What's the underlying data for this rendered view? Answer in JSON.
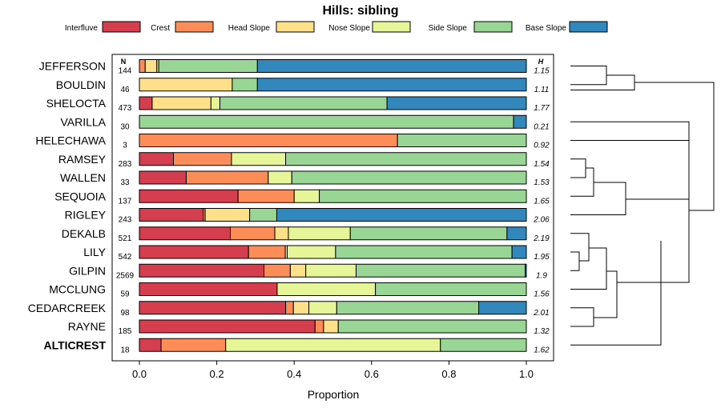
{
  "chart_data": {
    "type": "bar",
    "stacked": "horizontal-proportion",
    "title": "Hills: sibling",
    "xlabel": "Proportion",
    "xlim": [
      0,
      1
    ],
    "xticks": [
      "0.0",
      "0.2",
      "0.4",
      "0.6",
      "0.8",
      "1.0"
    ],
    "n_header": "N",
    "h_header": "H",
    "legend_position": "top",
    "series": [
      {
        "name": "Interfluve",
        "color": "#D53E4F"
      },
      {
        "name": "Crest",
        "color": "#FC8D59"
      },
      {
        "name": "Head Slope",
        "color": "#FEE08B"
      },
      {
        "name": "Nose Slope",
        "color": "#E6F598"
      },
      {
        "name": "Side Slope",
        "color": "#99D594"
      },
      {
        "name": "Base Slope",
        "color": "#3288BD"
      }
    ],
    "rows": [
      {
        "label": "JEFFERSON",
        "n": "144",
        "h": "1.15",
        "bold": false,
        "values": [
          0.0,
          0.015,
          0.03,
          0.005,
          0.255,
          0.695
        ]
      },
      {
        "label": "BOULDIN",
        "n": "46",
        "h": "1.11",
        "bold": false,
        "values": [
          0.0,
          0.0,
          0.24,
          0.0,
          0.065,
          0.695
        ]
      },
      {
        "label": "SHELOCTA",
        "n": "473",
        "h": "1.77",
        "bold": false,
        "values": [
          0.033,
          0.0,
          0.152,
          0.023,
          0.432,
          0.36
        ]
      },
      {
        "label": "VARILLA",
        "n": "30",
        "h": "0.21",
        "bold": false,
        "values": [
          0.0,
          0.0,
          0.0,
          0.0,
          0.967,
          0.033
        ]
      },
      {
        "label": "HELECHAWA",
        "n": "3",
        "h": "0.92",
        "bold": false,
        "values": [
          0.0,
          0.667,
          0.0,
          0.0,
          0.333,
          0.0
        ]
      },
      {
        "label": "RAMSEY",
        "n": "283",
        "h": "1.54",
        "bold": false,
        "values": [
          0.088,
          0.15,
          0.0,
          0.14,
          0.622,
          0.0
        ]
      },
      {
        "label": "WALLEN",
        "n": "33",
        "h": "1.53",
        "bold": false,
        "values": [
          0.121,
          0.212,
          0.0,
          0.061,
          0.606,
          0.0
        ]
      },
      {
        "label": "SEQUOIA",
        "n": "137",
        "h": "1.65",
        "bold": false,
        "values": [
          0.255,
          0.145,
          0.0,
          0.065,
          0.535,
          0.0
        ]
      },
      {
        "label": "RIGLEY",
        "n": "243",
        "h": "2.06",
        "bold": false,
        "values": [
          0.165,
          0.005,
          0.115,
          0.0,
          0.07,
          0.645
        ]
      },
      {
        "label": "DEKALB",
        "n": "521",
        "h": "2.19",
        "bold": false,
        "values": [
          0.235,
          0.115,
          0.035,
          0.16,
          0.405,
          0.05
        ]
      },
      {
        "label": "LILY",
        "n": "542",
        "h": "1.95",
        "bold": false,
        "values": [
          0.282,
          0.095,
          0.005,
          0.125,
          0.456,
          0.037
        ]
      },
      {
        "label": "GILPIN",
        "n": "2569",
        "h": "1.9",
        "bold": false,
        "values": [
          0.322,
          0.068,
          0.04,
          0.13,
          0.437,
          0.003
        ]
      },
      {
        "label": "MCCLUNG",
        "n": "59",
        "h": "1.56",
        "bold": false,
        "values": [
          0.356,
          0.0,
          0.0,
          0.254,
          0.39,
          0.0
        ]
      },
      {
        "label": "CEDARCREEK",
        "n": "98",
        "h": "2.01",
        "bold": false,
        "values": [
          0.378,
          0.02,
          0.04,
          0.072,
          0.367,
          0.123
        ]
      },
      {
        "label": "RAYNE",
        "n": "185",
        "h": "1.32",
        "bold": false,
        "values": [
          0.454,
          0.022,
          0.038,
          0.0,
          0.486,
          0.0
        ]
      },
      {
        "label": "ALTICREST",
        "n": "18",
        "h": "1.62",
        "bold": true,
        "values": [
          0.056,
          0.167,
          0.0,
          0.555,
          0.222,
          0.0
        ]
      }
    ],
    "dendrogram": true
  }
}
